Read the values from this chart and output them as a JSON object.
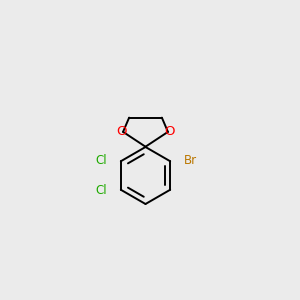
{
  "background_color": "#ebebeb",
  "bond_color": "#000000",
  "bond_width": 1.4,
  "atom_labels": {
    "O1": {
      "symbol": "O",
      "color": "#ff0000",
      "fontsize": 9.5
    },
    "O2": {
      "symbol": "O",
      "color": "#ff0000",
      "fontsize": 9.5
    },
    "Cl1": {
      "symbol": "Cl",
      "color": "#1faa00",
      "fontsize": 8.5
    },
    "Cl2": {
      "symbol": "Cl",
      "color": "#1faa00",
      "fontsize": 8.5
    },
    "Br": {
      "symbol": "Br",
      "color": "#bb7700",
      "fontsize": 8.5
    }
  },
  "figsize": [
    3.0,
    3.0
  ],
  "dpi": 100
}
